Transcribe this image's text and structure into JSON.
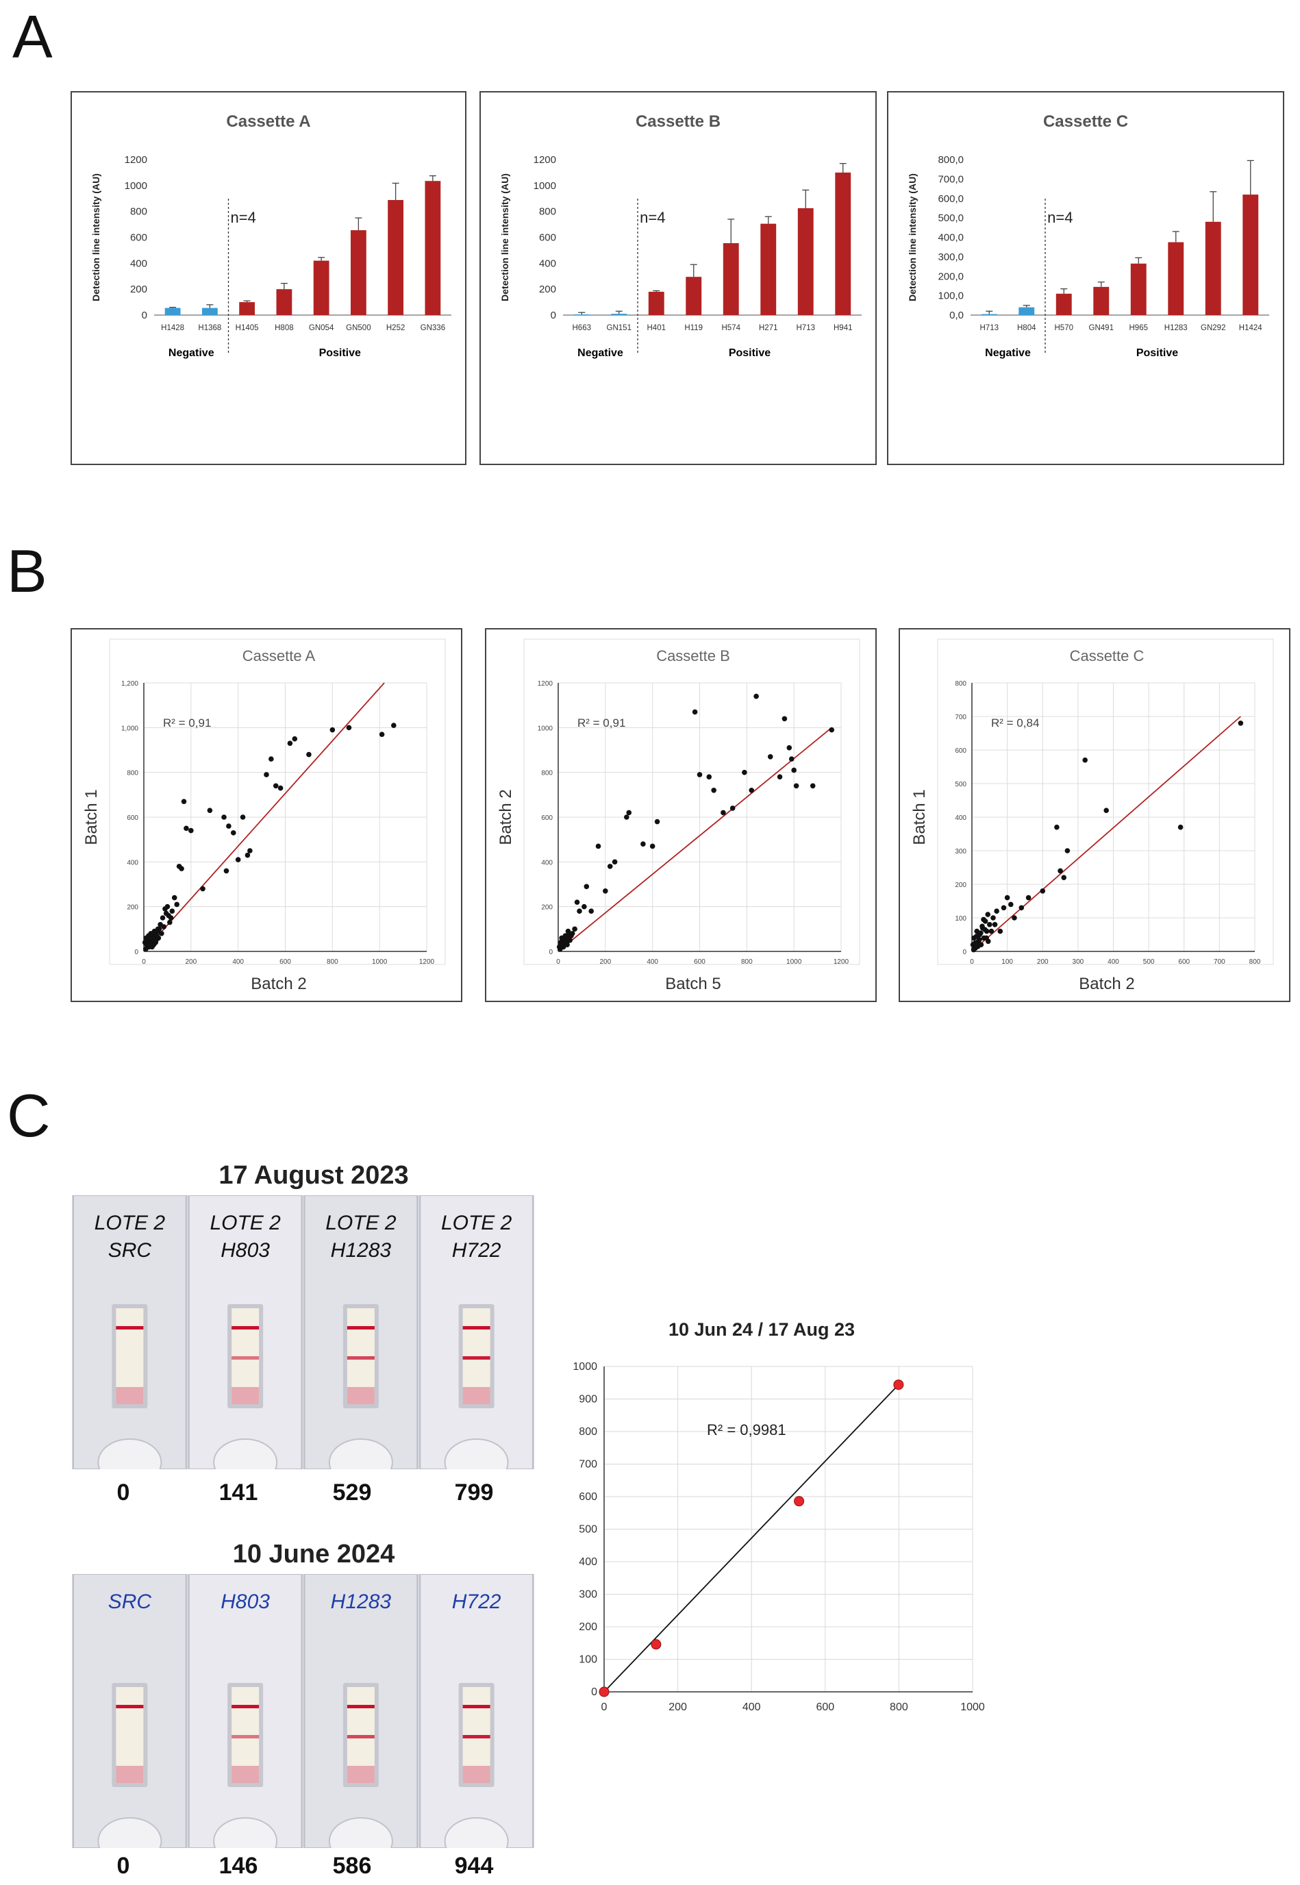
{
  "panels": {
    "a": "A",
    "b": "B",
    "c": "C"
  },
  "colors": {
    "bar": "#b22222",
    "negative": "#3a9bd5",
    "scatter_fit": "#b22222",
    "point": "#111111",
    "calib_point": "#e8262a"
  },
  "chart_data": [
    {
      "type": "bar",
      "title": "Cassette A",
      "ylabel": "Detection line intensity (AU)",
      "ylim": [
        0,
        1200
      ],
      "yticks": [
        "0",
        "200",
        "400",
        "600",
        "800",
        "1000",
        "1200"
      ],
      "categories": [
        "H1428",
        "H1368",
        "H1405",
        "H808",
        "GN054",
        "GN500",
        "H252",
        "GN336"
      ],
      "values": [
        55,
        55,
        100,
        200,
        420,
        655,
        888,
        1035
      ],
      "errors": [
        5,
        25,
        10,
        45,
        25,
        95,
        130,
        40
      ],
      "groups": [
        "Negative",
        "Negative",
        "Positive",
        "Positive",
        "Positive",
        "Positive",
        "Positive",
        "Positive"
      ],
      "group_labels": {
        "negative": "Negative",
        "positive": "Positive"
      },
      "annotation": "n=4"
    },
    {
      "type": "bar",
      "title": "Cassette B",
      "ylabel": "Detection line intensity (AU)",
      "ylim": [
        0,
        1200
      ],
      "yticks": [
        "0",
        "200",
        "400",
        "600",
        "800",
        "1000",
        "1200"
      ],
      "categories": [
        "H663",
        "GN151",
        "H401",
        "H119",
        "H574",
        "H271",
        "H713",
        "H941"
      ],
      "values": [
        5,
        10,
        180,
        295,
        555,
        705,
        825,
        1100
      ],
      "errors": [
        15,
        20,
        8,
        95,
        185,
        55,
        140,
        70
      ],
      "groups": [
        "Negative",
        "Negative",
        "Positive",
        "Positive",
        "Positive",
        "Positive",
        "Positive",
        "Positive"
      ],
      "group_labels": {
        "negative": "Negative",
        "positive": "Positive"
      },
      "annotation": "n=4"
    },
    {
      "type": "bar",
      "title": "Cassette C",
      "ylabel": "Detection line intensity (AU)",
      "ylim": [
        0,
        800
      ],
      "yticks": [
        "0,0",
        "100,0",
        "200,0",
        "300,0",
        "400,0",
        "500,0",
        "600,0",
        "700,0",
        "800,0"
      ],
      "categories": [
        "H713",
        "H804",
        "H570",
        "GN491",
        "H965",
        "H1283",
        "GN292",
        "H1424"
      ],
      "values": [
        5,
        40,
        110,
        145,
        265,
        375,
        480,
        620
      ],
      "errors": [
        15,
        10,
        25,
        25,
        30,
        55,
        155,
        175
      ],
      "groups": [
        "Negative",
        "Negative",
        "Positive",
        "Positive",
        "Positive",
        "Positive",
        "Positive",
        "Positive"
      ],
      "group_labels": {
        "negative": "Negative",
        "positive": "Positive"
      },
      "annotation": "n=4"
    },
    {
      "type": "scatter",
      "title": "Cassette A",
      "xlabel": "Batch 2",
      "ylabel": "Batch 1",
      "xlim": [
        0,
        1200
      ],
      "ylim": [
        0,
        1200
      ],
      "xticks": [
        "0",
        "200",
        "400",
        "600",
        "800",
        "1000",
        "1200"
      ],
      "yticks": [
        "0",
        "200",
        "400",
        "600",
        "800",
        "1,000",
        "1,200"
      ],
      "r2": "R² = 0,91",
      "fit": [
        [
          0,
          0
        ],
        [
          1020,
          1200
        ]
      ],
      "x": [
        5,
        10,
        15,
        20,
        25,
        30,
        35,
        40,
        45,
        50,
        55,
        60,
        8,
        12,
        18,
        22,
        28,
        33,
        38,
        42,
        48,
        52,
        58,
        62,
        65,
        70,
        75,
        80,
        85,
        90,
        95,
        100,
        105,
        110,
        115,
        120,
        130,
        140,
        150,
        160,
        170,
        180,
        200,
        250,
        280,
        340,
        350,
        360,
        380,
        400,
        420,
        440,
        450,
        520,
        540,
        560,
        580,
        620,
        640,
        700,
        800,
        870,
        1010,
        1060
      ],
      "y": [
        40,
        60,
        30,
        70,
        50,
        80,
        20,
        60,
        90,
        40,
        70,
        100,
        10,
        30,
        50,
        20,
        60,
        40,
        80,
        30,
        70,
        50,
        90,
        60,
        100,
        120,
        80,
        150,
        110,
        190,
        170,
        200,
        160,
        130,
        150,
        180,
        240,
        210,
        380,
        370,
        670,
        550,
        540,
        280,
        630,
        600,
        360,
        560,
        530,
        410,
        600,
        430,
        450,
        790,
        860,
        740,
        730,
        930,
        950,
        880,
        990,
        1000,
        970,
        1010
      ]
    },
    {
      "type": "scatter",
      "title": "Cassette B",
      "xlabel": "Batch 5",
      "ylabel": "Batch 2",
      "xlim": [
        0,
        1200
      ],
      "ylim": [
        0,
        1200
      ],
      "xticks": [
        "0",
        "200",
        "400",
        "600",
        "800",
        "1000",
        "1200"
      ],
      "yticks": [
        "0",
        "200",
        "400",
        "600",
        "800",
        "1000",
        "1200"
      ],
      "r2": "R² = 0,91",
      "fit": [
        [
          0,
          0
        ],
        [
          1160,
          1000
        ]
      ],
      "x": [
        5,
        10,
        15,
        20,
        25,
        30,
        35,
        40,
        45,
        50,
        55,
        8,
        12,
        18,
        22,
        28,
        33,
        38,
        42,
        48,
        52,
        60,
        70,
        80,
        90,
        110,
        120,
        140,
        170,
        200,
        220,
        240,
        290,
        300,
        360,
        400,
        420,
        580,
        600,
        640,
        660,
        700,
        740,
        790,
        820,
        840,
        900,
        940,
        960,
        980,
        990,
        1000,
        1010,
        1080,
        1160
      ],
      "y": [
        20,
        40,
        60,
        30,
        50,
        70,
        40,
        60,
        80,
        50,
        70,
        10,
        30,
        50,
        20,
        40,
        60,
        30,
        90,
        50,
        70,
        80,
        100,
        220,
        180,
        200,
        290,
        180,
        470,
        270,
        380,
        400,
        600,
        620,
        480,
        470,
        580,
        1070,
        790,
        780,
        720,
        620,
        640,
        800,
        720,
        1140,
        870,
        780,
        1040,
        910,
        860,
        810,
        740,
        740,
        990
      ]
    },
    {
      "type": "scatter",
      "title": "Cassette C",
      "xlabel": "Batch 2",
      "ylabel": "Batch 1",
      "xlim": [
        0,
        800
      ],
      "ylim": [
        0,
        800
      ],
      "xticks": [
        "0",
        "100",
        "200",
        "300",
        "400",
        "500",
        "600",
        "700",
        "800"
      ],
      "yticks": [
        "0",
        "100",
        "200",
        "300",
        "400",
        "500",
        "600",
        "700",
        "800"
      ],
      "r2": "R² = 0,84",
      "fit": [
        [
          0,
          0
        ],
        [
          760,
          700
        ]
      ],
      "x": [
        3,
        6,
        10,
        14,
        18,
        22,
        26,
        30,
        34,
        38,
        42,
        46,
        50,
        5,
        9,
        13,
        17,
        21,
        25,
        29,
        33,
        37,
        41,
        45,
        55,
        60,
        65,
        70,
        80,
        90,
        100,
        110,
        120,
        140,
        160,
        200,
        240,
        250,
        260,
        270,
        320,
        380,
        590,
        760
      ],
      "y": [
        20,
        40,
        10,
        60,
        30,
        50,
        20,
        70,
        40,
        90,
        60,
        30,
        80,
        5,
        25,
        45,
        15,
        35,
        55,
        75,
        95,
        65,
        40,
        110,
        60,
        100,
        80,
        120,
        60,
        130,
        160,
        140,
        100,
        130,
        160,
        180,
        370,
        240,
        220,
        300,
        570,
        420,
        370,
        680
      ]
    },
    {
      "type": "scatter",
      "title": "10 Jun 24 / 17 Aug 23",
      "xlim": [
        0,
        1000
      ],
      "ylim": [
        0,
        1000
      ],
      "xticks": [
        "0",
        "200",
        "400",
        "600",
        "800",
        "1000"
      ],
      "yticks": [
        "0",
        "100",
        "200",
        "300",
        "400",
        "500",
        "600",
        "700",
        "800",
        "900",
        "1000"
      ],
      "r2": "R² = 0,9981",
      "fit": [
        [
          0,
          0
        ],
        [
          799,
          944
        ]
      ],
      "x": [
        0,
        141,
        529,
        799
      ],
      "y": [
        0,
        146,
        586,
        944
      ]
    }
  ],
  "strips": [
    {
      "date": "17 August 2023",
      "labels": [
        [
          "LOTE 2",
          "SRC"
        ],
        [
          "LOTE 2",
          "H803"
        ],
        [
          "LOTE 2",
          "H1283"
        ],
        [
          "LOTE 2",
          "H722"
        ]
      ],
      "values": [
        "0",
        "141",
        "529",
        "799"
      ],
      "label_color": "#111111"
    },
    {
      "date": "10 June 2024",
      "labels": [
        [
          "SRC"
        ],
        [
          "H803"
        ],
        [
          "H1283"
        ],
        [
          "H722"
        ]
      ],
      "values": [
        "0",
        "146",
        "586",
        "944"
      ],
      "label_color": "#1f3fa8"
    }
  ]
}
